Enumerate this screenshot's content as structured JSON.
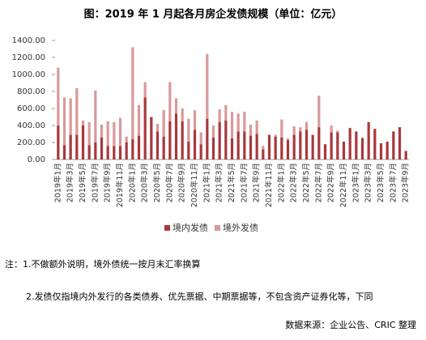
{
  "chart_data": {
    "type": "stacked-bar",
    "title": "图：2019 年 1 月起各月房企发债规模（单位：亿元）",
    "categories": [
      "2019年1月",
      null,
      "2019年3月",
      null,
      "2019年5月",
      null,
      "2019年7月",
      null,
      "2019年9月",
      null,
      "2019年11月",
      null,
      "2020年1月",
      null,
      "2020年3月",
      null,
      "2020年5月",
      null,
      "2020年7月",
      null,
      "2020年9月",
      null,
      "2020年11月",
      null,
      "2021年1月",
      null,
      "2021年3月",
      null,
      "2021年5月",
      null,
      "2021年7月",
      null,
      "2021年9月",
      null,
      "2021年11月",
      null,
      "2022年1月",
      null,
      "2022年3月",
      null,
      "2022年5月",
      null,
      "2022年7月",
      null,
      "2022年9月",
      null,
      "2022年11月",
      null,
      "2023年1月",
      null,
      "2023年3月",
      null,
      "2023年5月",
      null,
      "2023年7月",
      null,
      "2023年9月"
    ],
    "series": [
      {
        "name": "境内发债",
        "color": "#a8383b",
        "values": [
          400,
          170,
          290,
          290,
          400,
          170,
          200,
          260,
          160,
          160,
          160,
          200,
          240,
          280,
          730,
          500,
          330,
          270,
          450,
          540,
          450,
          210,
          350,
          180,
          480,
          260,
          440,
          460,
          250,
          330,
          330,
          280,
          300,
          120,
          290,
          270,
          260,
          230,
          290,
          330,
          350,
          290,
          380,
          180,
          320,
          320,
          210,
          370,
          330,
          250,
          440,
          360,
          190,
          210,
          330,
          380,
          100
        ]
      },
      {
        "name": "境外发债",
        "color": "#d9999a",
        "values": [
          680,
          560,
          430,
          550,
          60,
          270,
          610,
          150,
          290,
          280,
          330,
          70,
          1080,
          360,
          180,
          0,
          90,
          310,
          460,
          180,
          150,
          270,
          230,
          140,
          760,
          140,
          150,
          180,
          310,
          210,
          230,
          130,
          160,
          40,
          0,
          20,
          210,
          20,
          100,
          50,
          90,
          0,
          370,
          0,
          80,
          20,
          0,
          0,
          0,
          10,
          0,
          0,
          0,
          0,
          0,
          0,
          0
        ]
      }
    ],
    "ylim": [
      0,
      1400
    ],
    "yticks": [
      {
        "value": 0,
        "label": "0.00"
      },
      {
        "value": 200,
        "label": "200.00"
      },
      {
        "value": 400,
        "label": "400.00"
      },
      {
        "value": 600,
        "label": "600.00"
      },
      {
        "value": 800,
        "label": "800.00"
      },
      {
        "value": 1000,
        "label": "1000.00"
      },
      {
        "value": 1200,
        "label": "1200.00"
      },
      {
        "value": 1400,
        "label": "1400.00"
      }
    ],
    "legend": "bottom",
    "notes": [
      "注：1.不做额外说明，境外债统一按月末汇率换算",
      "2.发债仅指境内外发行的各类债券、优先票据、中期票据等，不包含资产证券化等，下同"
    ],
    "source": "数据来源：企业公告、CRIC 整理"
  }
}
